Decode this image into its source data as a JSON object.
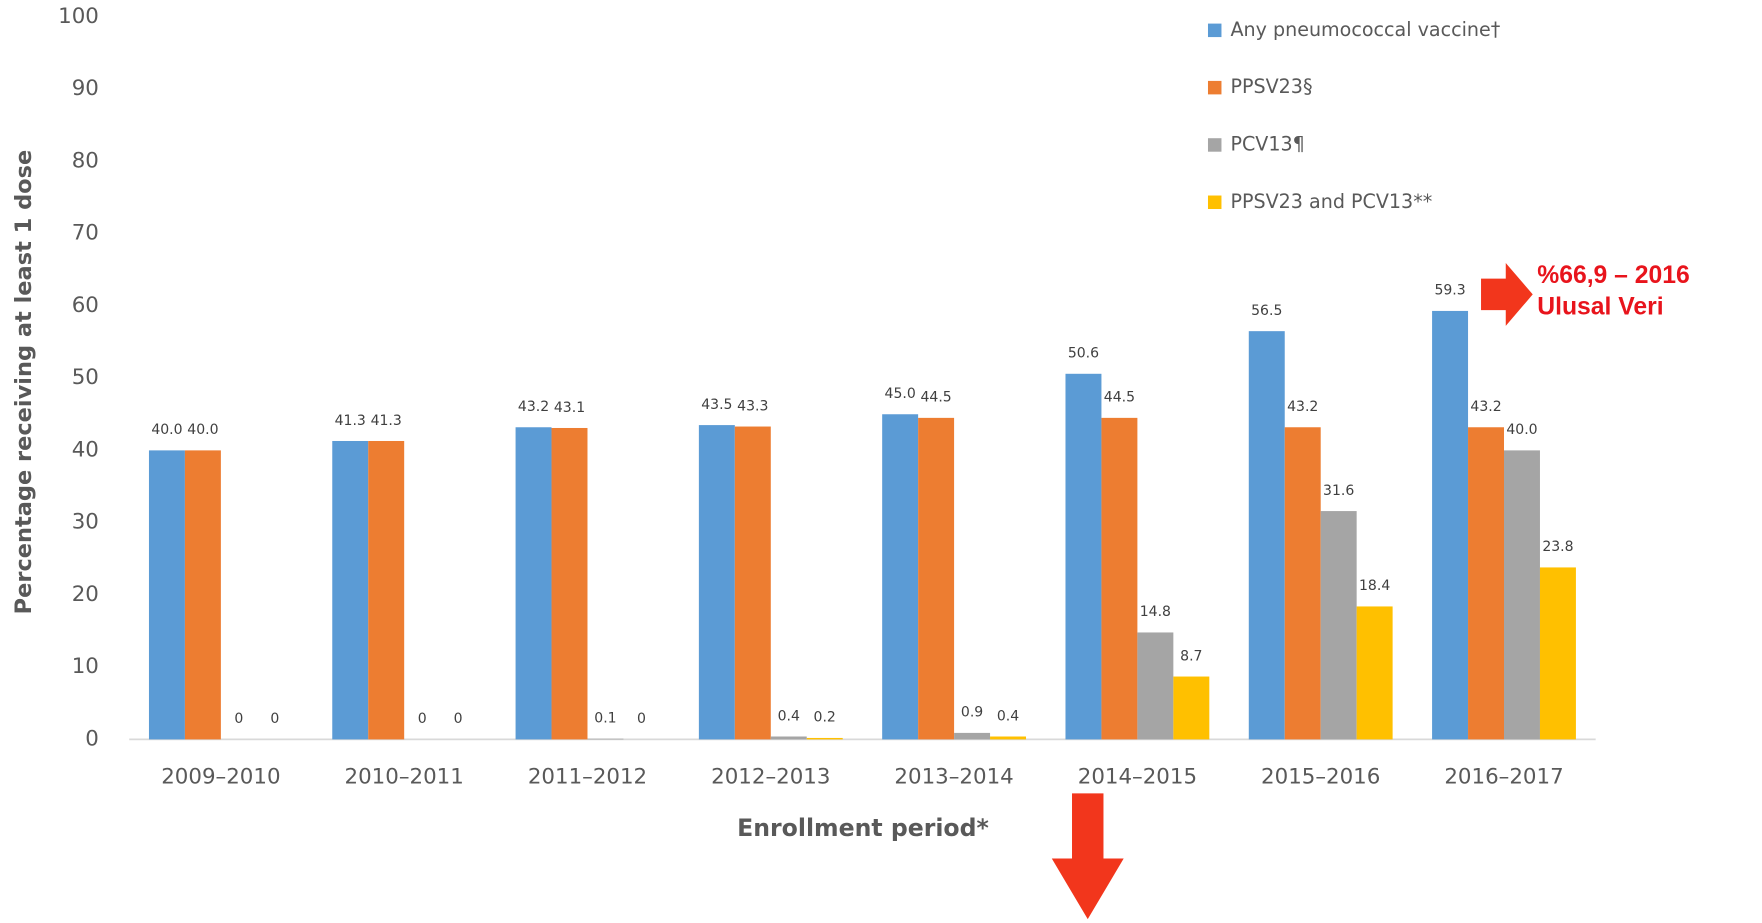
{
  "chart_data": {
    "type": "bar",
    "y_label": "Percentage receiving at least 1 dose",
    "x_label": "Enrollment period*",
    "categories": [
      "2009–2010",
      "2010–2011",
      "2011–2012",
      "2012–2013",
      "2013–2014",
      "2014–2015",
      "2015–2016",
      "2016–2017"
    ],
    "series": [
      {
        "name": "Any pneumococcal vaccine†",
        "color": "#5b9bd5",
        "values": [
          40.0,
          41.3,
          43.2,
          43.5,
          45.0,
          50.6,
          56.5,
          59.3
        ],
        "value_labels": [
          "40.0",
          "41.3",
          "43.2",
          "43.5",
          "45.0",
          "50.6",
          "56.5",
          "59.3"
        ]
      },
      {
        "name": "PPSV23§",
        "color": "#ed7d31",
        "values": [
          40.0,
          41.3,
          43.1,
          43.3,
          44.5,
          44.5,
          43.2,
          43.2
        ],
        "value_labels": [
          "40.0",
          "41.3",
          "43.1",
          "43.3",
          "44.5",
          "44.5",
          "43.2",
          "43.2"
        ]
      },
      {
        "name": "PCV13¶",
        "color": "#a5a5a5",
        "values": [
          0,
          0,
          0.1,
          0.4,
          0.9,
          14.8,
          31.6,
          40.0
        ],
        "value_labels": [
          "0",
          "0",
          "0.1",
          "0.4",
          "0.9",
          "14.8",
          "31.6",
          "40.0"
        ]
      },
      {
        "name": "PPSV23 and PCV13**",
        "color": "#ffc000",
        "values": [
          0,
          0,
          0,
          0.2,
          0.4,
          8.7,
          18.4,
          23.8
        ],
        "value_labels": [
          "0",
          "0",
          "0",
          "0.2",
          "0.4",
          "8.7",
          "18.4",
          "23.8"
        ]
      }
    ],
    "ylim": [
      0,
      100
    ],
    "yticks": [
      0,
      10,
      20,
      30,
      40,
      50,
      60,
      70,
      80,
      90,
      100
    ],
    "grid": false,
    "legend": "top-right",
    "annotations": [
      "%66,9 – 2016",
      "Ulusal Veri"
    ]
  }
}
